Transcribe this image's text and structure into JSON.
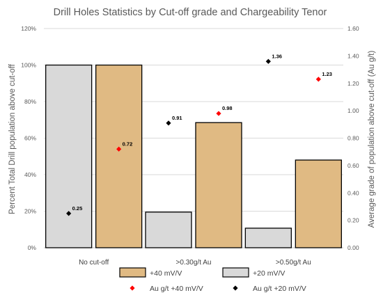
{
  "chart_data": {
    "type": "bar",
    "title": "Drill Holes Statistics by Cut-off grade and Chargeability Tenor",
    "categories": [
      "No cut-off",
      ">0.30g/t Au",
      ">0.50g/t Au"
    ],
    "ylabel": "Percent Total Drill population above cut-off",
    "y2label": "Average grade of population above cut-off (Au g/t)",
    "ylim": [
      0,
      1.2
    ],
    "y_ticks": [
      "0%",
      "20%",
      "40%",
      "60%",
      "80%",
      "100%",
      "120%"
    ],
    "y2lim": [
      0,
      1.6
    ],
    "y2_ticks": [
      "0.00",
      "0.20",
      "0.40",
      "0.60",
      "0.80",
      "1.00",
      "1.20",
      "1.40",
      "1.60"
    ],
    "grid": true,
    "legend_position": "bottom",
    "series": [
      {
        "name": "+20 mV/V",
        "kind": "bar",
        "color": "#D9D9D9",
        "values": [
          1.0,
          0.195,
          0.107
        ]
      },
      {
        "name": "+40 mV/V",
        "kind": "bar",
        "color": "#E0BA83",
        "values": [
          1.0,
          0.685,
          0.48
        ]
      },
      {
        "name": "Au g/t +20 mV/V",
        "kind": "marker",
        "axis": "right",
        "color": "#000000",
        "values": [
          0.25,
          0.91,
          1.36
        ],
        "labels": [
          "0.25",
          "0.91",
          "1.36"
        ]
      },
      {
        "name": "Au g/t +40 mV/V",
        "kind": "marker",
        "axis": "right",
        "color": "#FF0000",
        "values": [
          0.72,
          0.98,
          1.23
        ],
        "labels": [
          "0.72",
          "0.98",
          "1.23"
        ]
      }
    ],
    "legend": [
      {
        "label": "+40 mV/V",
        "type": "box",
        "color": "#E0BA83"
      },
      {
        "label": "+20 mV/V",
        "type": "box",
        "color": "#D9D9D9"
      },
      {
        "label": "Au g/t +40 mV/V",
        "type": "diamond",
        "color": "#FF0000"
      },
      {
        "label": "Au g/t +20 mV/V",
        "type": "diamond",
        "color": "#000000"
      }
    ]
  }
}
